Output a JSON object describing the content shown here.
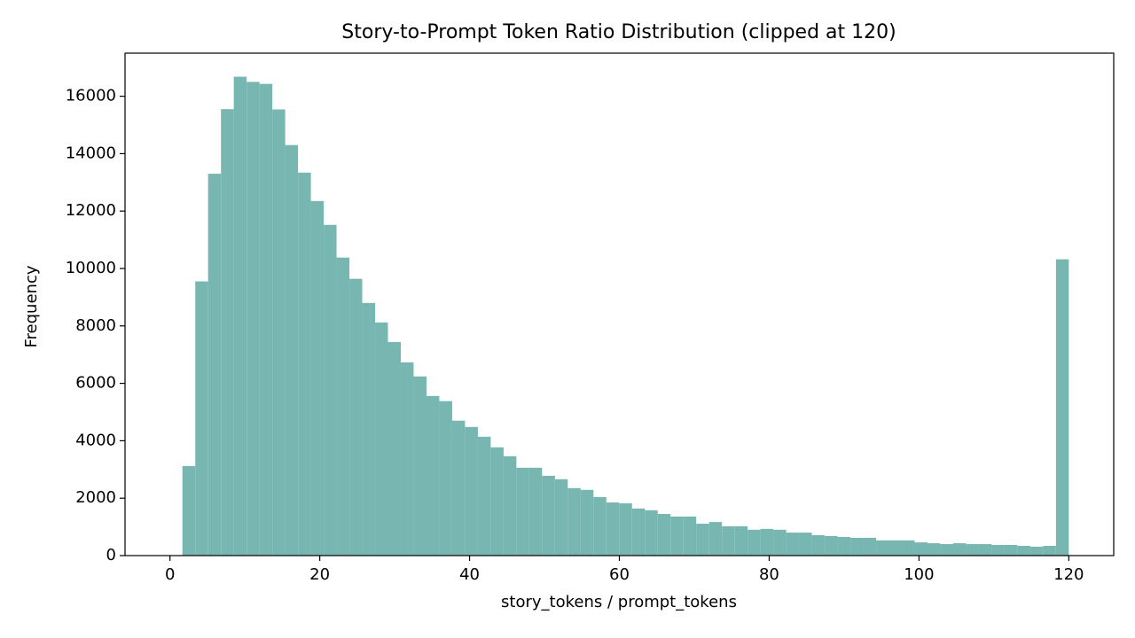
{
  "chart_data": {
    "type": "histogram",
    "title": "Story-to-Prompt Token Ratio Distribution (clipped at 120)",
    "xlabel": "story_tokens / prompt_tokens",
    "ylabel": "Frequency",
    "color": "#78b7b1",
    "bins": [
      1.66,
      3.38,
      5.09,
      6.81,
      8.52,
      10.24,
      11.95,
      13.67,
      15.38,
      17.1,
      18.81,
      20.53,
      22.24,
      23.96,
      25.67,
      27.39,
      29.1,
      30.82,
      32.53,
      34.25,
      35.96,
      37.68,
      39.39,
      41.11,
      42.82,
      44.54,
      46.25,
      47.97,
      49.68,
      51.4,
      53.11,
      54.83,
      56.54,
      58.26,
      59.97,
      61.69,
      63.4,
      65.12,
      66.83,
      68.55,
      70.26,
      71.98,
      73.69,
      75.41,
      77.12,
      78.84,
      80.55,
      82.27,
      83.98,
      85.7,
      87.42,
      89.13,
      90.85,
      92.56,
      94.28,
      95.99,
      97.71,
      99.42,
      101.14,
      102.85,
      104.57,
      106.28,
      108.0,
      109.71,
      111.43,
      113.14,
      114.86,
      116.57,
      118.29,
      120.0
    ],
    "counts": [
      3120,
      9550,
      13300,
      15550,
      16680,
      16500,
      16430,
      15540,
      14300,
      13340,
      12350,
      11520,
      10380,
      9640,
      8800,
      8120,
      7440,
      6730,
      6240,
      5560,
      5380,
      4700,
      4480,
      4140,
      3770,
      3460,
      3060,
      3060,
      2780,
      2660,
      2350,
      2290,
      2040,
      1850,
      1820,
      1640,
      1580,
      1450,
      1360,
      1360,
      1110,
      1170,
      1020,
      1020,
      900,
      930,
      900,
      800,
      800,
      710,
      680,
      650,
      620,
      620,
      530,
      530,
      530,
      460,
      430,
      400,
      430,
      400,
      400,
      370,
      370,
      340,
      310,
      340,
      10320
    ],
    "xlim": [
      -6,
      126
    ],
    "ylim": [
      0,
      17500
    ],
    "xticks": [
      0,
      20,
      40,
      60,
      80,
      100,
      120
    ],
    "yticks": [
      0,
      2000,
      4000,
      6000,
      8000,
      10000,
      12000,
      14000,
      16000
    ]
  }
}
